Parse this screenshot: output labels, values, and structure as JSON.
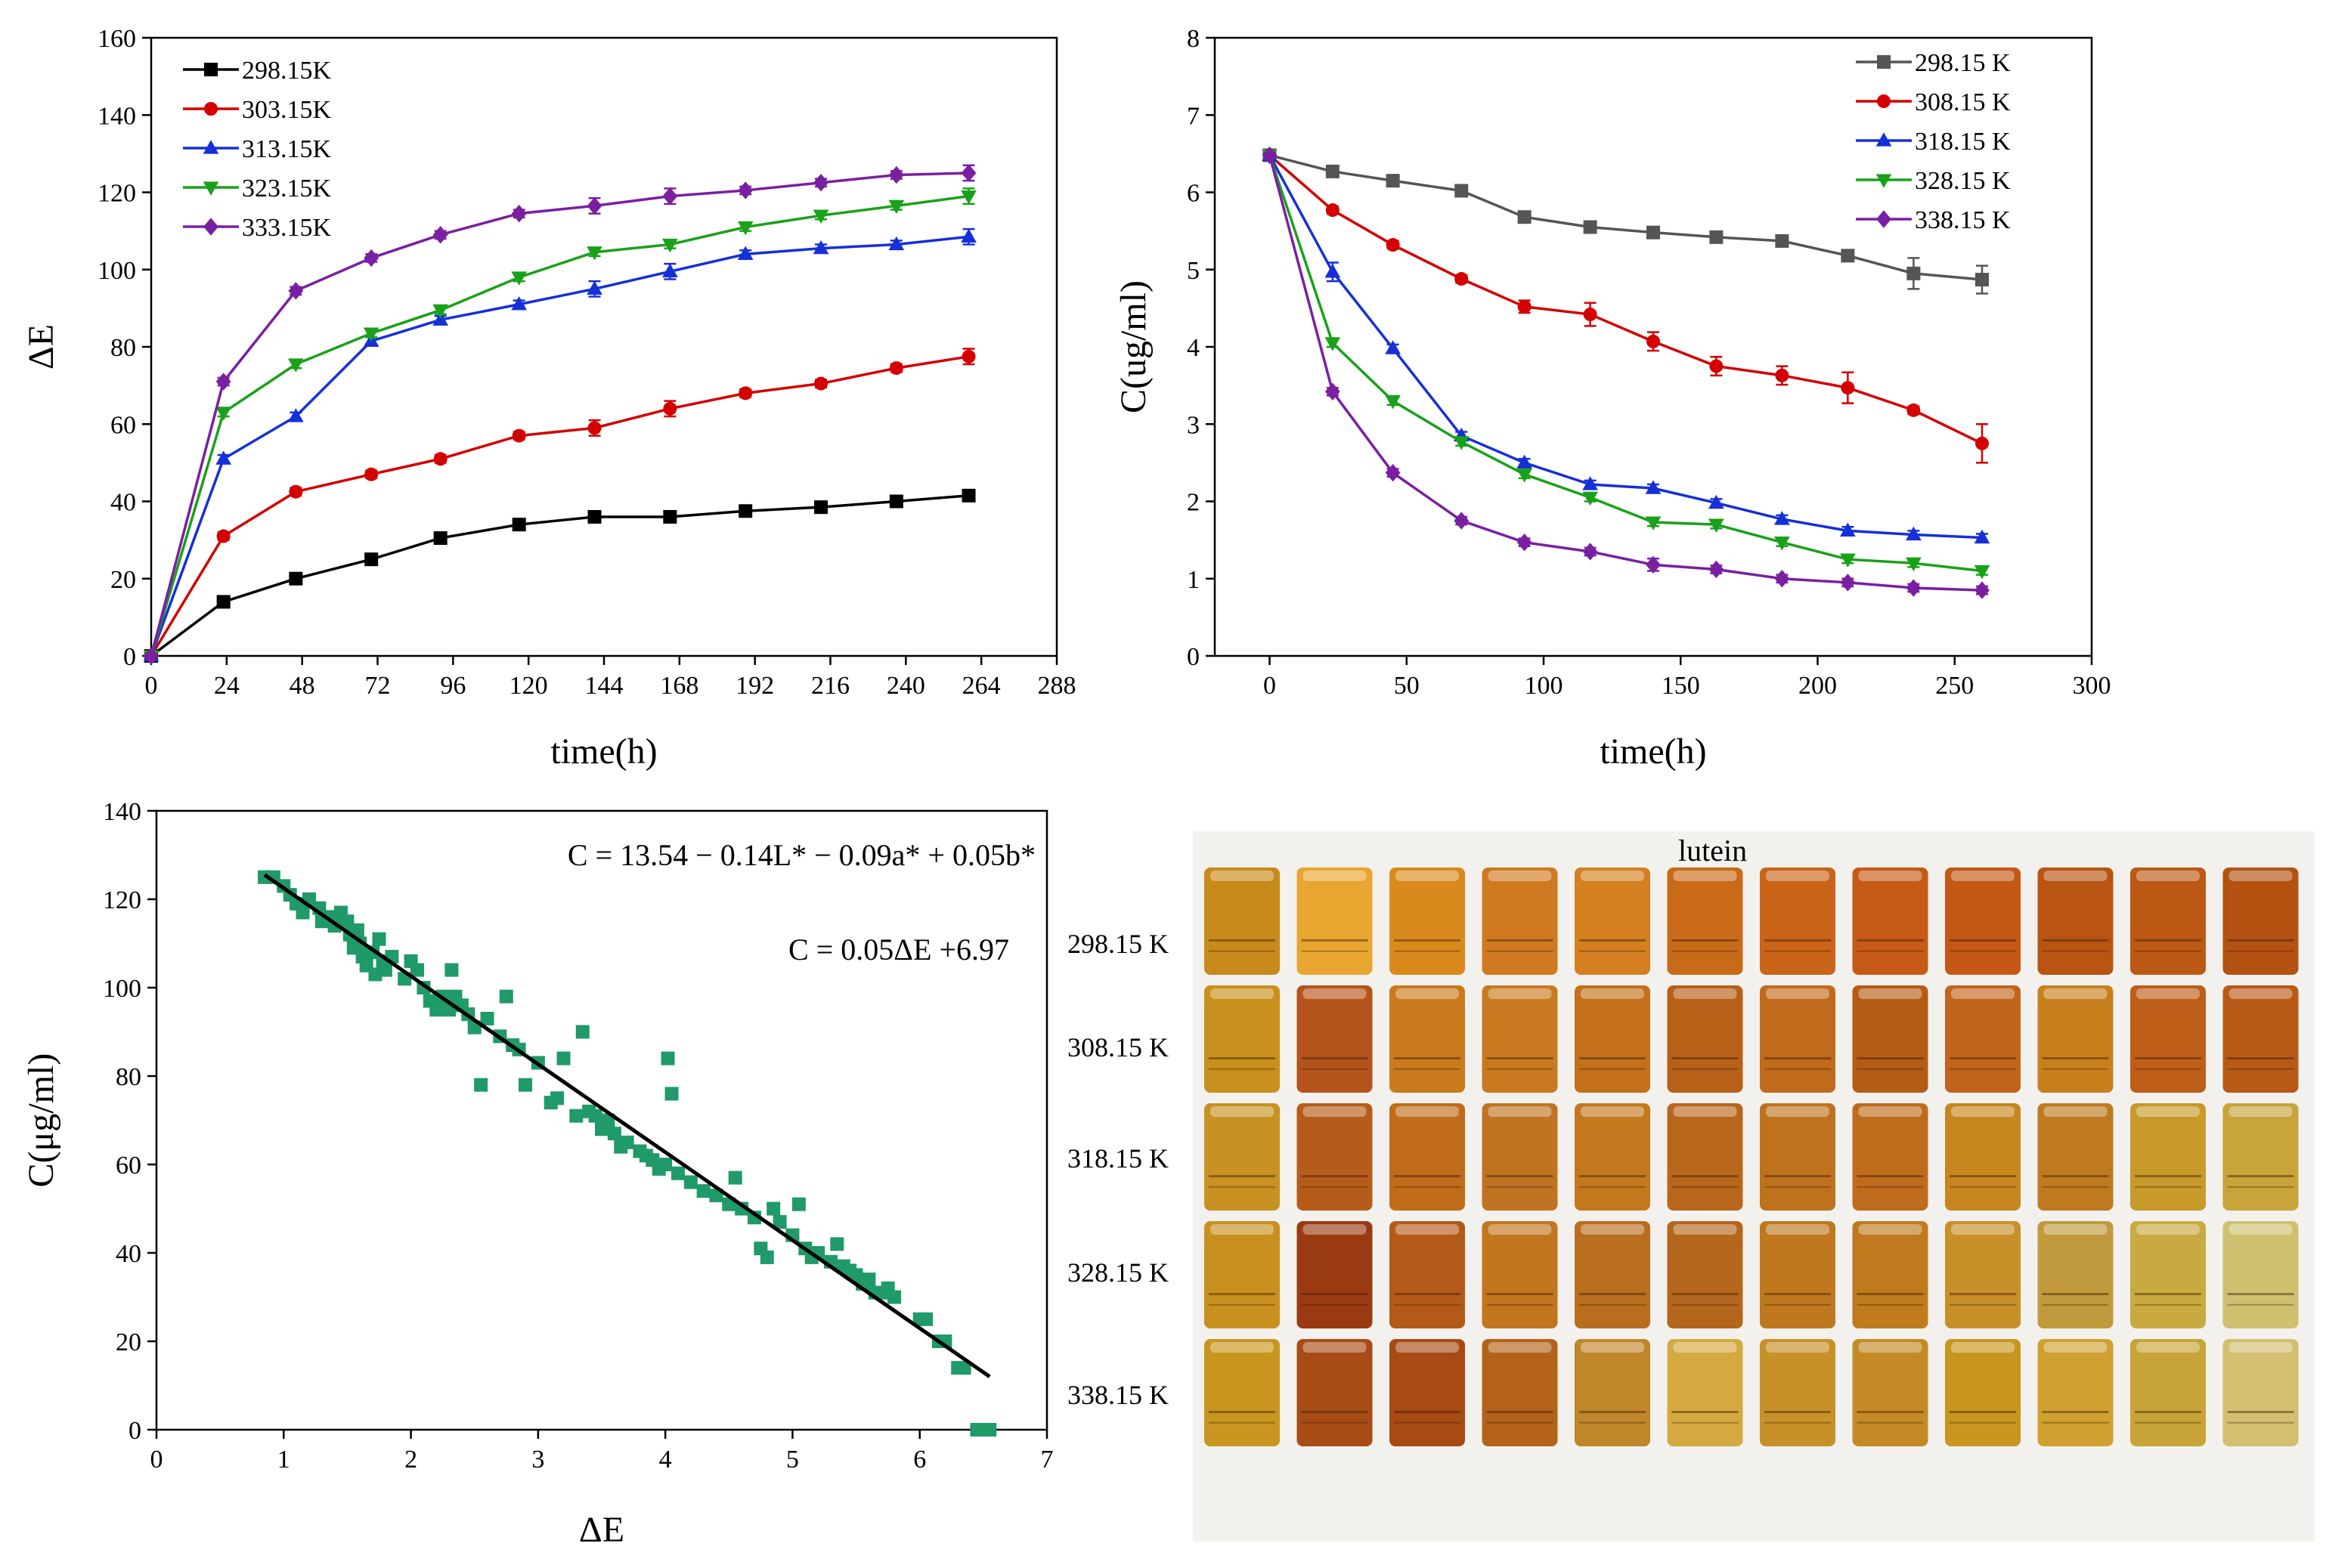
{
  "chart_data": [
    {
      "id": "A",
      "type": "line",
      "xlabel": "time(h)",
      "ylabel": "ΔE",
      "xlim": [
        0,
        288
      ],
      "ylim": [
        0,
        160
      ],
      "xticks": [
        "0",
        "24",
        "48",
        "72",
        "96",
        "120",
        "144",
        "168",
        "192",
        "216",
        "240",
        "264",
        "288"
      ],
      "yticks": [
        "0",
        "20",
        "40",
        "60",
        "80",
        "100",
        "120",
        "140",
        "160"
      ],
      "legend_position": "top-left",
      "x": [
        0,
        23,
        46,
        70,
        92,
        117,
        141,
        165,
        189,
        213,
        237,
        260
      ],
      "series": [
        {
          "name": "298.15K",
          "color": "#000000",
          "marker": "square",
          "values": [
            0,
            14,
            20,
            25,
            30.5,
            34,
            36,
            36,
            37.5,
            38.5,
            40,
            41.5
          ],
          "errors": [
            0,
            1,
            1,
            1,
            1,
            1,
            1,
            1,
            1,
            1,
            1,
            1
          ]
        },
        {
          "name": "303.15K",
          "color": "#d40000",
          "marker": "circle",
          "values": [
            0,
            31,
            42.5,
            47,
            51,
            57,
            59,
            64,
            68,
            70.5,
            74.5,
            77.5
          ],
          "errors": [
            0,
            1,
            1,
            1,
            1,
            1,
            2,
            2,
            1,
            1,
            1,
            2
          ]
        },
        {
          "name": "313.15K",
          "color": "#1530d8",
          "marker": "triangle-up",
          "values": [
            0,
            51,
            62,
            81.5,
            87,
            91,
            95,
            99.5,
            104,
            105.5,
            106.5,
            108.5
          ],
          "errors": [
            0,
            1,
            1,
            1,
            1,
            1,
            2,
            2,
            1,
            1,
            1,
            2
          ]
        },
        {
          "name": "323.15K",
          "color": "#1aa11a",
          "marker": "triangle-down",
          "values": [
            0,
            63,
            75.5,
            83.5,
            89.5,
            98,
            104.5,
            106.5,
            111,
            114,
            116.5,
            119
          ],
          "errors": [
            0,
            1,
            1,
            1,
            1,
            1,
            1,
            1,
            1,
            1,
            1,
            2
          ]
        },
        {
          "name": "333.15K",
          "color": "#7a1fa2",
          "marker": "diamond",
          "values": [
            0,
            71,
            94.5,
            103,
            109,
            114.5,
            116.5,
            119,
            120.5,
            122.5,
            124.5,
            125
          ],
          "errors": [
            0,
            1,
            1,
            1,
            1,
            1,
            2,
            2,
            1,
            1,
            1,
            2
          ]
        }
      ]
    },
    {
      "id": "B",
      "type": "line",
      "xlabel": "time(h)",
      "ylabel": "C(ug/ml)",
      "xlim": [
        -20,
        300
      ],
      "ylim": [
        0,
        8
      ],
      "xticks": [
        "0",
        "50",
        "100",
        "150",
        "200",
        "250",
        "300"
      ],
      "yticks": [
        "0",
        "1",
        "2",
        "3",
        "4",
        "5",
        "6",
        "7",
        "8"
      ],
      "legend_position": "top-right",
      "x": [
        0,
        23,
        45,
        70,
        93,
        117,
        140,
        163,
        187,
        211,
        235,
        260
      ],
      "series": [
        {
          "name": "298.15 K",
          "color": "#555555",
          "marker": "square",
          "values": [
            6.48,
            6.27,
            6.15,
            6.02,
            5.68,
            5.55,
            5.48,
            5.42,
            5.37,
            5.18,
            4.95,
            4.87
          ],
          "errors": [
            0.03,
            0.05,
            0.05,
            0.05,
            0.06,
            0.05,
            0.04,
            0.04,
            0.05,
            0.06,
            0.2,
            0.18
          ]
        },
        {
          "name": "308.15 K",
          "color": "#d40000",
          "marker": "circle",
          "values": [
            6.48,
            5.77,
            5.32,
            4.88,
            4.52,
            4.42,
            4.07,
            3.75,
            3.63,
            3.47,
            3.18,
            2.75
          ],
          "errors": [
            0.03,
            0.05,
            0.05,
            0.05,
            0.08,
            0.15,
            0.12,
            0.12,
            0.12,
            0.2,
            0.05,
            0.25
          ]
        },
        {
          "name": "318.15 K",
          "color": "#1530d8",
          "marker": "triangle-up",
          "values": [
            6.48,
            4.97,
            3.98,
            2.85,
            2.5,
            2.22,
            2.17,
            1.98,
            1.77,
            1.62,
            1.57,
            1.53
          ],
          "errors": [
            0.03,
            0.12,
            0.05,
            0.05,
            0.05,
            0.05,
            0.05,
            0.05,
            0.05,
            0.05,
            0.05,
            0.05
          ]
        },
        {
          "name": "328.15 K",
          "color": "#1aa11a",
          "marker": "triangle-down",
          "values": [
            6.48,
            4.05,
            3.3,
            2.77,
            2.35,
            2.05,
            1.73,
            1.7,
            1.47,
            1.25,
            1.2,
            1.1
          ],
          "errors": [
            0.03,
            0.05,
            0.05,
            0.05,
            0.05,
            0.05,
            0.05,
            0.05,
            0.05,
            0.05,
            0.05,
            0.05
          ]
        },
        {
          "name": "338.15 K",
          "color": "#7a1fa2",
          "marker": "diamond",
          "values": [
            6.48,
            3.42,
            2.37,
            1.75,
            1.47,
            1.35,
            1.18,
            1.12,
            1.0,
            0.95,
            0.88,
            0.85
          ],
          "errors": [
            0.03,
            0.05,
            0.05,
            0.05,
            0.05,
            0.05,
            0.08,
            0.05,
            0.05,
            0.05,
            0.05,
            0.05
          ]
        }
      ]
    },
    {
      "id": "C",
      "type": "scatter",
      "xlabel": "ΔE",
      "ylabel": "C(μg/ml)",
      "xlim": [
        0,
        7
      ],
      "ylim": [
        0,
        140
      ],
      "xticks": [
        "0",
        "1",
        "2",
        "3",
        "4",
        "5",
        "6",
        "7"
      ],
      "yticks": [
        "0",
        "20",
        "40",
        "60",
        "80",
        "100",
        "120",
        "140"
      ],
      "marker_color": "#1f9a68",
      "fit_line": {
        "x": [
          0.85,
          6.55
        ],
        "y": [
          125.5,
          12
        ],
        "color": "#000000"
      },
      "equation_1": "C = 13.54 − 0.14L* −  0.09a* + 0.05b*",
      "equation_2": "C = 0.05ΔE +6.97",
      "points": [
        [
          0.85,
          125
        ],
        [
          0.92,
          125
        ],
        [
          1.0,
          123
        ],
        [
          1.05,
          121
        ],
        [
          1.1,
          119
        ],
        [
          1.15,
          117
        ],
        [
          1.2,
          120
        ],
        [
          1.28,
          118
        ],
        [
          1.3,
          115
        ],
        [
          1.35,
          116
        ],
        [
          1.4,
          114
        ],
        [
          1.45,
          117
        ],
        [
          1.5,
          115
        ],
        [
          1.52,
          112
        ],
        [
          1.55,
          109
        ],
        [
          1.58,
          113
        ],
        [
          1.6,
          110
        ],
        [
          1.62,
          107
        ],
        [
          1.65,
          105
        ],
        [
          1.7,
          108
        ],
        [
          1.72,
          103
        ],
        [
          1.75,
          111
        ],
        [
          1.78,
          106
        ],
        [
          1.8,
          104
        ],
        [
          1.85,
          107
        ],
        [
          1.95,
          102
        ],
        [
          2.0,
          106
        ],
        [
          2.05,
          104
        ],
        [
          2.1,
          100
        ],
        [
          2.15,
          97
        ],
        [
          2.2,
          95
        ],
        [
          2.25,
          98
        ],
        [
          2.3,
          95
        ],
        [
          2.32,
          104
        ],
        [
          2.35,
          98
        ],
        [
          2.4,
          96
        ],
        [
          2.45,
          94
        ],
        [
          2.5,
          91
        ],
        [
          2.55,
          78
        ],
        [
          2.6,
          93
        ],
        [
          2.7,
          89
        ],
        [
          2.75,
          98
        ],
        [
          2.8,
          87
        ],
        [
          2.85,
          86
        ],
        [
          2.9,
          78
        ],
        [
          3.0,
          83
        ],
        [
          3.1,
          74
        ],
        [
          3.15,
          75
        ],
        [
          3.2,
          84
        ],
        [
          3.3,
          71
        ],
        [
          3.35,
          90
        ],
        [
          3.4,
          72
        ],
        [
          3.45,
          71
        ],
        [
          3.5,
          68
        ],
        [
          3.55,
          70
        ],
        [
          3.6,
          67
        ],
        [
          3.65,
          64
        ],
        [
          3.7,
          65
        ],
        [
          3.8,
          63
        ],
        [
          3.85,
          62
        ],
        [
          3.9,
          61
        ],
        [
          3.95,
          59
        ],
        [
          4.0,
          60
        ],
        [
          4.02,
          84
        ],
        [
          4.05,
          76
        ],
        [
          4.1,
          58
        ],
        [
          4.2,
          56
        ],
        [
          4.3,
          54
        ],
        [
          4.4,
          53
        ],
        [
          4.5,
          51
        ],
        [
          4.55,
          57
        ],
        [
          4.6,
          50
        ],
        [
          4.7,
          48
        ],
        [
          4.75,
          41
        ],
        [
          4.8,
          39
        ],
        [
          4.85,
          50
        ],
        [
          4.9,
          47
        ],
        [
          5.0,
          44
        ],
        [
          5.05,
          51
        ],
        [
          5.1,
          41
        ],
        [
          5.15,
          39
        ],
        [
          5.2,
          40
        ],
        [
          5.3,
          38
        ],
        [
          5.35,
          42
        ],
        [
          5.4,
          37
        ],
        [
          5.45,
          36
        ],
        [
          5.5,
          35
        ],
        [
          5.55,
          33
        ],
        [
          5.6,
          34
        ],
        [
          5.65,
          31
        ],
        [
          5.7,
          31
        ],
        [
          5.75,
          32
        ],
        [
          5.8,
          30
        ],
        [
          6.0,
          25
        ],
        [
          6.05,
          25
        ],
        [
          6.15,
          20
        ],
        [
          6.2,
          20
        ],
        [
          6.3,
          14
        ],
        [
          6.35,
          14
        ],
        [
          6.45,
          0
        ],
        [
          6.5,
          0
        ],
        [
          6.55,
          0
        ]
      ]
    }
  ],
  "photo_panel": {
    "title": "lutein",
    "rows": [
      {
        "label": "298.15 K",
        "colors": [
          "#c88a1a",
          "#e8a630",
          "#d98a1c",
          "#cf7a20",
          "#d48020",
          "#c96a18",
          "#c96418",
          "#c65a16",
          "#c45814",
          "#b95412",
          "#bb5814",
          "#b45212"
        ]
      },
      {
        "label": "308.15 K",
        "colors": [
          "#c8901c",
          "#b4541a",
          "#c97a1c",
          "#c97a20",
          "#c4701c",
          "#b66018",
          "#c06a1c",
          "#b45c16",
          "#c2641c",
          "#c8801e",
          "#be5e18",
          "#b85a16"
        ]
      },
      {
        "label": "318.15 K",
        "colors": [
          "#c89222",
          "#b65c1a",
          "#c06c1a",
          "#c07422",
          "#c4781e",
          "#b8661c",
          "#bf721e",
          "#be6c1c",
          "#c8861e",
          "#bf7a20",
          "#c89a2a",
          "#c8a43a"
        ]
      },
      {
        "label": "328.15 K",
        "colors": [
          "#c8901e",
          "#9a3a12",
          "#b45a18",
          "#c2761e",
          "#b86e1e",
          "#b4661c",
          "#bf781e",
          "#c07a1e",
          "#c89028",
          "#c09a3c",
          "#c8aa40",
          "#cfc070"
        ]
      },
      {
        "label": "338.15 K",
        "colors": [
          "#c8961e",
          "#a84c16",
          "#a84a14",
          "#b4621a",
          "#c0862a",
          "#d4aa40",
          "#c89028",
          "#c48a26",
          "#c8961e",
          "#d0a030",
          "#c8a438",
          "#d2c070"
        ]
      }
    ]
  }
}
